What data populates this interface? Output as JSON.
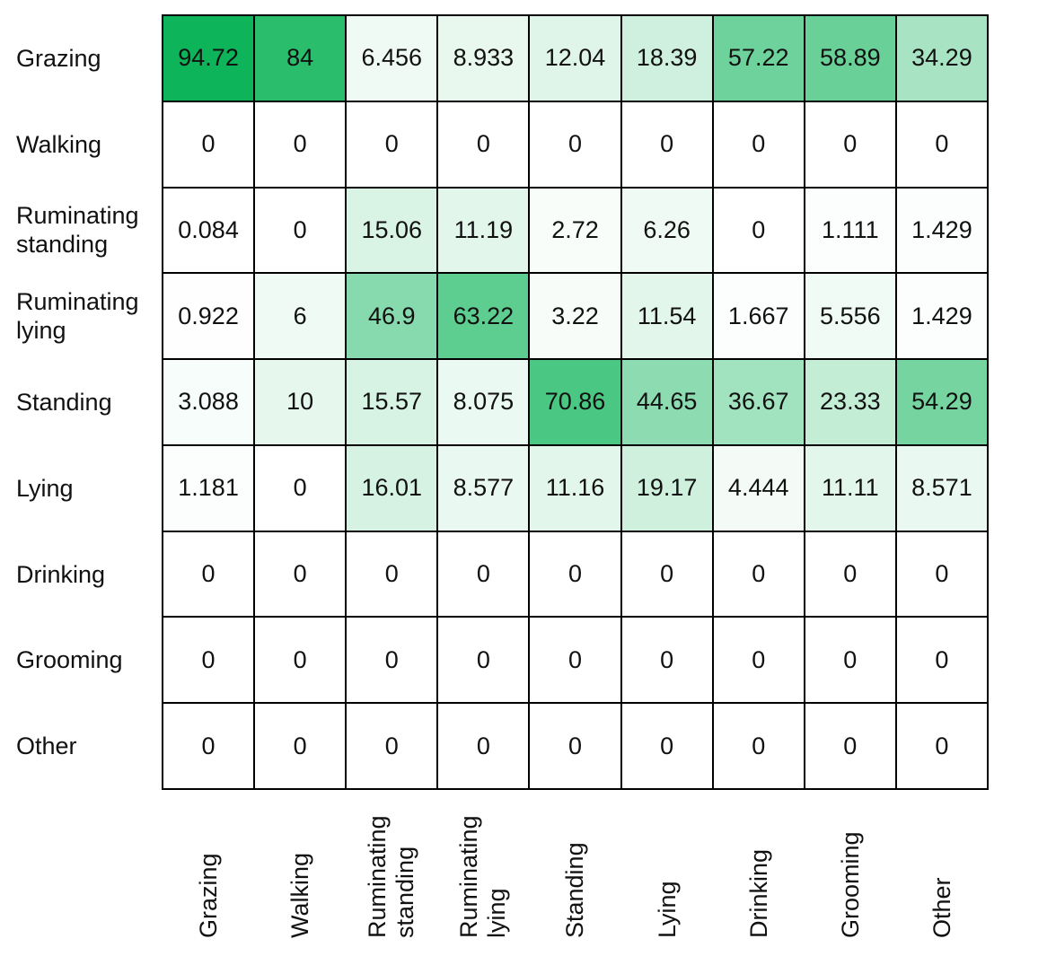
{
  "chart_data": {
    "type": "heatmap",
    "rows": [
      "Grazing",
      "Walking",
      "Ruminating standing",
      "Ruminating lying",
      "Standing",
      "Lying",
      "Drinking",
      "Grooming",
      "Other"
    ],
    "columns": [
      "Grazing",
      "Walking",
      "Ruminating standing",
      "Ruminating lying",
      "Standing",
      "Lying",
      "Drinking",
      "Grooming",
      "Other"
    ],
    "values": [
      [
        94.72,
        84,
        6.456,
        8.933,
        12.04,
        18.39,
        57.22,
        58.89,
        34.29
      ],
      [
        0,
        0,
        0,
        0,
        0,
        0,
        0,
        0,
        0
      ],
      [
        0.084,
        0,
        15.06,
        11.19,
        2.72,
        6.26,
        0,
        1.111,
        1.429
      ],
      [
        0.922,
        6,
        46.9,
        63.22,
        3.22,
        11.54,
        1.667,
        5.556,
        1.429
      ],
      [
        3.088,
        10,
        15.57,
        8.075,
        70.86,
        44.65,
        36.67,
        23.33,
        54.29
      ],
      [
        1.181,
        0,
        16.01,
        8.577,
        11.16,
        19.17,
        4.444,
        11.11,
        8.571
      ],
      [
        0,
        0,
        0,
        0,
        0,
        0,
        0,
        0,
        0
      ],
      [
        0,
        0,
        0,
        0,
        0,
        0,
        0,
        0,
        0
      ],
      [
        0,
        0,
        0,
        0,
        0,
        0,
        0,
        0,
        0
      ]
    ],
    "colormap": {
      "min_color": "#ffffff",
      "max_color": "#00b050",
      "domain": [
        0,
        100
      ]
    },
    "grid_line_color": "#000000",
    "text_color": "#111111",
    "legend_position": "none",
    "title": ""
  }
}
